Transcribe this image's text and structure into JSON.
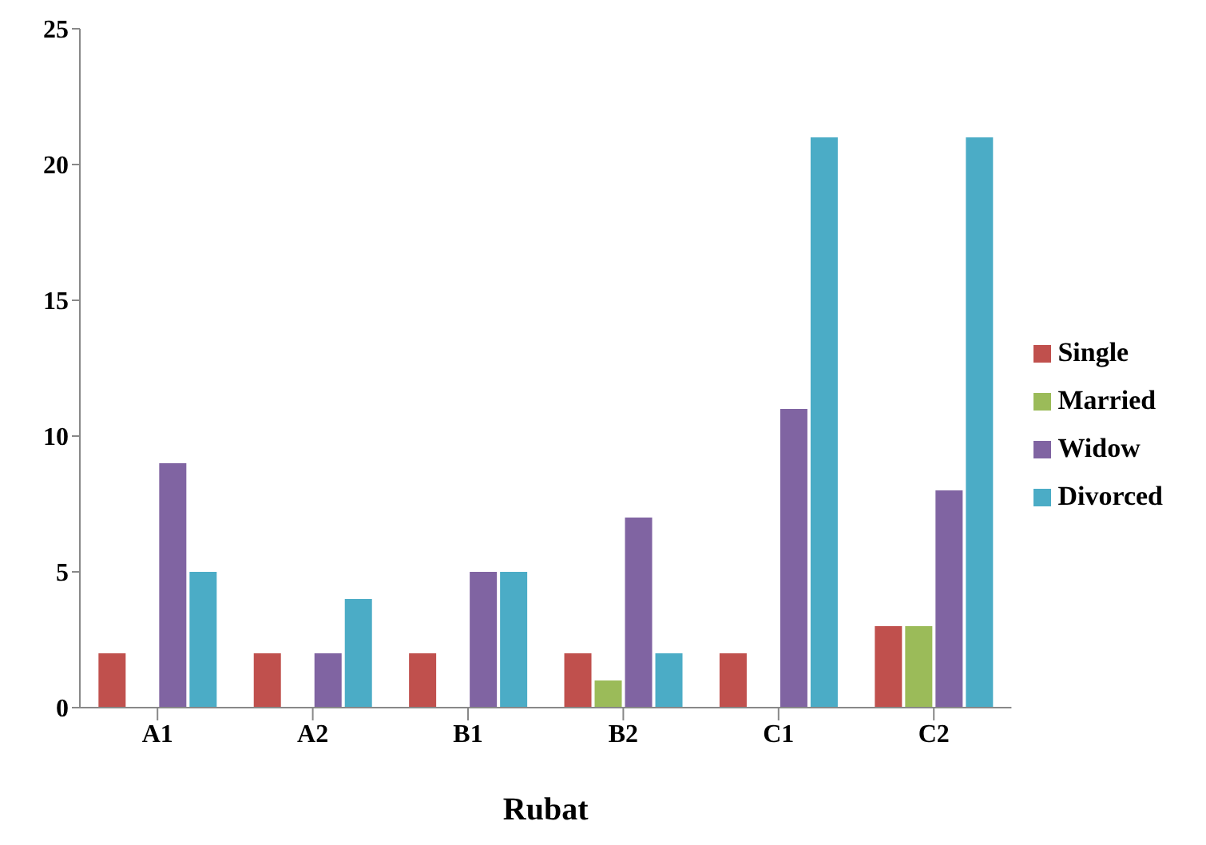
{
  "chart_data": {
    "type": "bar",
    "xlabel": "Rubat",
    "categories": [
      "A1",
      "A2",
      "B1",
      "B2",
      "C1",
      "C2"
    ],
    "series": [
      {
        "name": "Single",
        "color": "#c0504d",
        "values": [
          2,
          2,
          2,
          2,
          2,
          3
        ]
      },
      {
        "name": "Married",
        "color": "#9bbb59",
        "values": [
          0,
          0,
          0,
          1,
          0,
          3
        ]
      },
      {
        "name": "Widow",
        "color": "#8064a2",
        "values": [
          9,
          2,
          5,
          7,
          11,
          8
        ]
      },
      {
        "name": "Divorced",
        "color": "#4bacc6",
        "values": [
          5,
          4,
          5,
          2,
          21,
          21
        ]
      }
    ],
    "ylim": [
      0,
      25
    ],
    "yticks": [
      0,
      5,
      10,
      15,
      20,
      25
    ],
    "grid": false,
    "legend": "right"
  }
}
